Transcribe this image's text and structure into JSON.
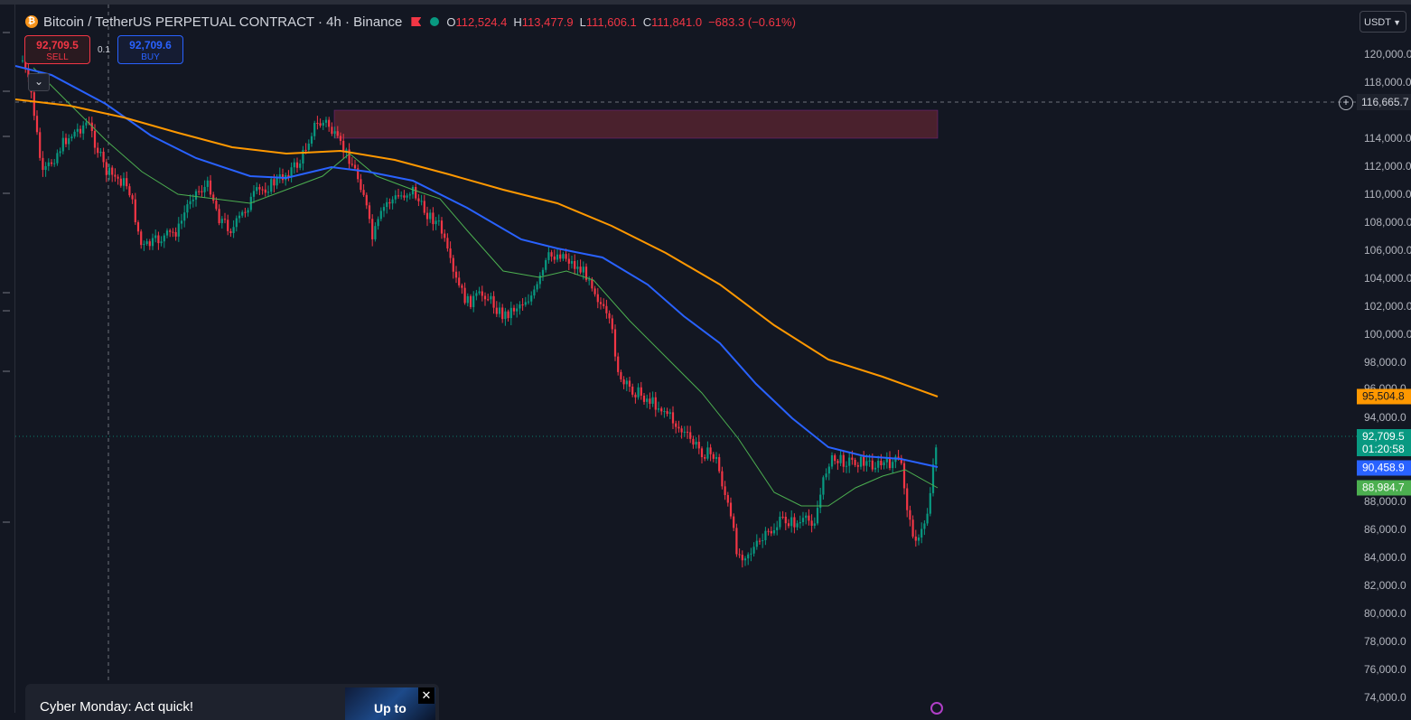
{
  "header": {
    "title": "Bitcoin / TetherUS PERPETUAL CONTRACT · 4h · Binance",
    "coin_glyph": "₿",
    "ohlc": [
      {
        "k": "O",
        "v": "112,524.4"
      },
      {
        "k": "H",
        "v": "113,477.9"
      },
      {
        "k": "L",
        "v": "111,606.1"
      },
      {
        "k": "C",
        "v": "111,841.0"
      }
    ],
    "change": "−683.3 (−0.61%)"
  },
  "trade": {
    "sell_price": "92,709.5",
    "sell_label": "SELL",
    "buy_price": "92,709.6",
    "buy_label": "BUY",
    "spread": "0.1"
  },
  "collapse_glyph": "⌄",
  "axis": {
    "unit": "USDT",
    "ticks": [
      "120,000.0",
      "118,000.0",
      "114,000.0",
      "112,000.0",
      "110,000.0",
      "108,000.0",
      "106,000.0",
      "104,000.0",
      "102,000.0",
      "100,000.0",
      "98,000.0",
      "96,000.0",
      "94,000.0",
      "88,000.0",
      "86,000.0",
      "84,000.0",
      "82,000.0",
      "80,000.0",
      "78,000.0",
      "76,000.0",
      "74,000.0"
    ],
    "crosshair_price": "116,665.7",
    "ma_long_price": "95,504.8",
    "last_price": "92,709.5",
    "countdown": "01:20:58",
    "ma_mid_price": "90,458.9",
    "ma_short_price": "88,984.7"
  },
  "colors": {
    "up": "#089981",
    "down": "#f23645",
    "ma_long": "#ff9800",
    "ma_mid": "#2962ff",
    "ma_short": "#4caf50",
    "zone": "#5d2532"
  },
  "promo": {
    "text": "Cyber Monday: Act quick!",
    "image_text": "Up to"
  }
}
